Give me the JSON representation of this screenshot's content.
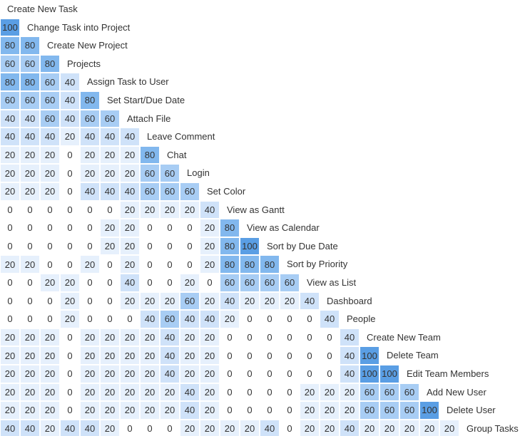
{
  "chart_data": {
    "type": "heatmap",
    "title": "",
    "features": [
      "Create New Task",
      "Change Task into Project",
      "Create New Project",
      "Projects",
      "Assign Task to User",
      "Set Start/Due Date",
      "Attach File",
      "Leave Comment",
      "Chat",
      "Login",
      "Set Color",
      "View as Gantt",
      "View as Calendar",
      "Sort by Due Date",
      "Sort by Priority",
      "View as List",
      "Dashboard",
      "People",
      "Create New Team",
      "Delete Team",
      "Edit Team Members",
      "Add New User",
      "Delete User",
      "Group Tasks"
    ],
    "rows": [
      [],
      [
        100
      ],
      [
        80,
        80
      ],
      [
        60,
        60,
        80
      ],
      [
        80,
        80,
        60,
        40
      ],
      [
        60,
        60,
        60,
        40,
        80
      ],
      [
        40,
        40,
        60,
        40,
        60,
        60
      ],
      [
        40,
        40,
        40,
        20,
        40,
        40,
        40
      ],
      [
        20,
        20,
        20,
        0,
        20,
        20,
        20,
        80
      ],
      [
        20,
        20,
        20,
        0,
        20,
        20,
        20,
        60,
        60
      ],
      [
        20,
        20,
        20,
        0,
        40,
        40,
        40,
        60,
        60,
        60
      ],
      [
        0,
        0,
        0,
        0,
        0,
        0,
        20,
        20,
        20,
        20,
        40
      ],
      [
        0,
        0,
        0,
        0,
        0,
        20,
        20,
        0,
        0,
        0,
        20,
        80
      ],
      [
        0,
        0,
        0,
        0,
        0,
        20,
        20,
        0,
        0,
        0,
        20,
        80,
        100
      ],
      [
        20,
        20,
        0,
        0,
        20,
        0,
        20,
        0,
        0,
        0,
        20,
        80,
        80,
        80
      ],
      [
        0,
        0,
        20,
        20,
        0,
        0,
        40,
        0,
        0,
        20,
        0,
        60,
        60,
        60,
        60
      ],
      [
        0,
        0,
        0,
        20,
        0,
        0,
        20,
        20,
        20,
        60,
        20,
        40,
        20,
        20,
        20,
        40
      ],
      [
        0,
        0,
        0,
        20,
        0,
        0,
        0,
        40,
        60,
        40,
        40,
        20,
        0,
        0,
        0,
        0,
        40
      ],
      [
        20,
        20,
        20,
        0,
        20,
        20,
        20,
        20,
        40,
        20,
        20,
        0,
        0,
        0,
        0,
        0,
        0,
        40
      ],
      [
        20,
        20,
        20,
        0,
        20,
        20,
        20,
        20,
        40,
        20,
        20,
        0,
        0,
        0,
        0,
        0,
        0,
        40,
        100
      ],
      [
        20,
        20,
        20,
        0,
        20,
        20,
        20,
        20,
        40,
        20,
        20,
        0,
        0,
        0,
        0,
        0,
        0,
        40,
        100,
        100
      ],
      [
        20,
        20,
        20,
        0,
        20,
        20,
        20,
        20,
        20,
        40,
        20,
        0,
        0,
        0,
        0,
        20,
        20,
        20,
        60,
        60,
        60
      ],
      [
        20,
        20,
        20,
        0,
        20,
        20,
        20,
        20,
        20,
        40,
        20,
        0,
        0,
        0,
        0,
        20,
        20,
        20,
        60,
        60,
        60,
        100
      ],
      [
        40,
        40,
        20,
        40,
        40,
        20,
        0,
        0,
        0,
        20,
        20,
        20,
        20,
        40,
        0,
        20,
        20,
        40,
        20,
        20,
        20,
        20,
        20
      ]
    ],
    "value_range": [
      0,
      100
    ],
    "color_scale": {
      "0": "#ffffff",
      "20": "#e6f0fc",
      "40": "#cfe2f9",
      "60": "#a8cdf4",
      "80": "#82b8ee",
      "100": "#5a9ee4"
    },
    "grid": false,
    "legend": "none"
  }
}
